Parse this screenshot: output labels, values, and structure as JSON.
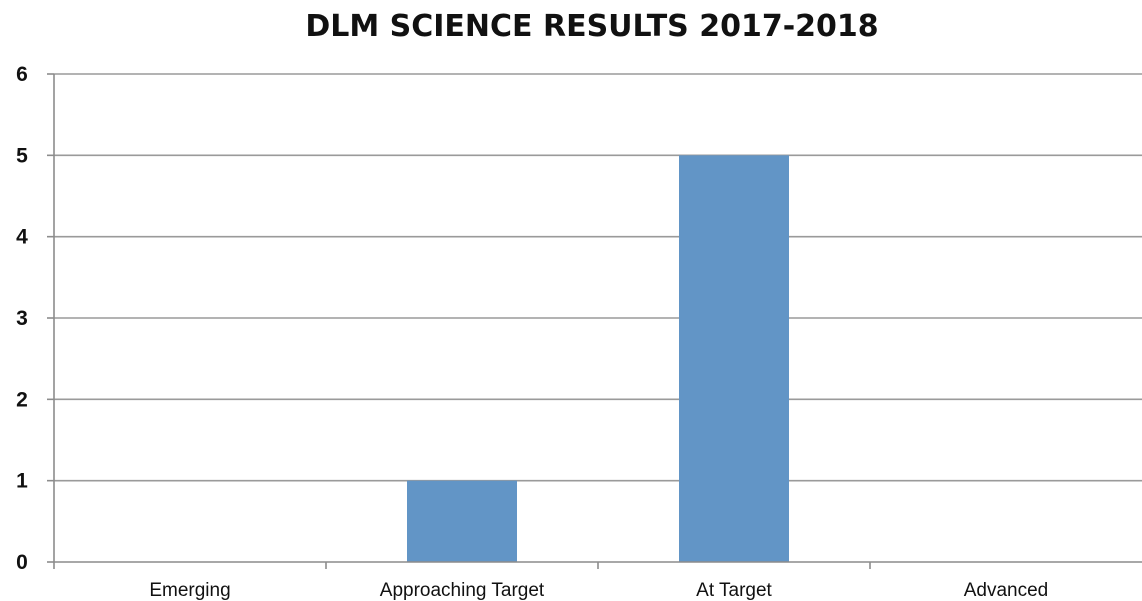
{
  "chart_data": {
    "type": "bar",
    "title": "DLM SCIENCE RESULTS 2017-2018",
    "categories": [
      "Emerging",
      "Approaching Target",
      "At Target",
      "Advanced"
    ],
    "values": [
      0,
      1,
      5,
      0
    ],
    "xlabel": "",
    "ylabel": "",
    "ylim": [
      0,
      6
    ],
    "yticks": [
      "0",
      "1",
      "2",
      "3",
      "4",
      "5",
      "6"
    ],
    "grid": true,
    "legend": "none",
    "bar_color": "#6295c6"
  }
}
